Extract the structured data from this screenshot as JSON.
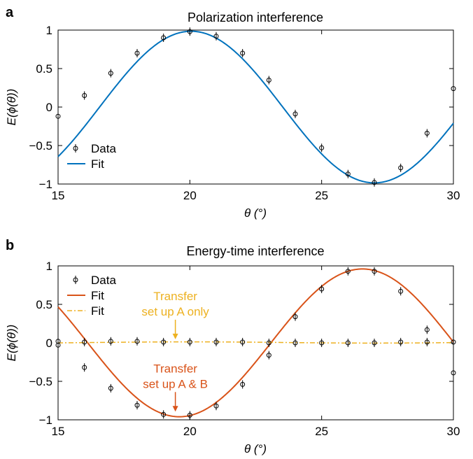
{
  "chart_data": [
    {
      "panel_label": "a",
      "type": "scatter",
      "title": "Polarization interference",
      "xlabel": "θ (°)",
      "ylabel": "E(ϕ(θ))",
      "xlim": [
        15,
        30
      ],
      "ylim": [
        -1,
        1
      ],
      "xticks": [
        15,
        20,
        25,
        30
      ],
      "yticks": [
        -1,
        -0.5,
        0,
        0.5,
        1
      ],
      "xtick_labels": [
        "15",
        "20",
        "25",
        "30"
      ],
      "ytick_labels": [
        "−1",
        "−0.5",
        "0",
        "0.5",
        "1"
      ],
      "legend": {
        "placement": "bottom-left",
        "entries": [
          "Data",
          "Fit"
        ]
      },
      "series": [
        {
          "name": "Data",
          "kind": "markers",
          "color": "#000000",
          "x": [
            15,
            16,
            17,
            18,
            19,
            20,
            21,
            22,
            23,
            24,
            25,
            26,
            27,
            28,
            29,
            30
          ],
          "y": [
            -0.12,
            0.15,
            0.44,
            0.7,
            0.9,
            0.98,
            0.92,
            0.7,
            0.35,
            -0.09,
            -0.53,
            -0.87,
            -0.98,
            -0.79,
            -0.34,
            0.24
          ]
        },
        {
          "name": "Fit",
          "kind": "line",
          "color": "#0072BD",
          "model": {
            "amplitude": 0.985,
            "period": 13.9,
            "peak_x": 20.05,
            "offset": 0.0
          },
          "x_range": [
            15,
            30
          ]
        }
      ],
      "annotations": []
    },
    {
      "panel_label": "b",
      "type": "scatter",
      "title": "Energy-time interference",
      "xlabel": "θ (°)",
      "ylabel": "E(ϕ(θ))",
      "xlim": [
        15,
        30
      ],
      "ylim": [
        -1,
        1
      ],
      "xticks": [
        15,
        20,
        25,
        30
      ],
      "yticks": [
        -1,
        -0.5,
        0,
        0.5,
        1
      ],
      "xtick_labels": [
        "15",
        "20",
        "25",
        "30"
      ],
      "ytick_labels": [
        "−1",
        "−0.5",
        "0",
        "0.5",
        "1"
      ],
      "legend": {
        "placement": "top-left",
        "entries": [
          "Data",
          "Fit",
          "Fit"
        ]
      },
      "series": [
        {
          "name": "Data",
          "kind": "markers",
          "color": "#000000",
          "x": [
            15,
            16,
            17,
            18,
            19,
            20,
            21,
            22,
            23,
            24,
            25,
            26,
            27,
            28,
            29,
            30
          ],
          "y": [
            -0.03,
            -0.32,
            -0.59,
            -0.81,
            -0.93,
            -0.94,
            -0.82,
            -0.54,
            -0.16,
            0.34,
            0.7,
            0.93,
            0.93,
            0.67,
            0.17,
            -0.39
          ]
        },
        {
          "name": "Data",
          "kind": "markers",
          "color": "#000000",
          "x": [
            15,
            16,
            17,
            18,
            19,
            20,
            21,
            22,
            23,
            24,
            25,
            26,
            27,
            28,
            29,
            30
          ],
          "y": [
            0.02,
            0.01,
            0.02,
            0.02,
            0.01,
            0.01,
            0.01,
            0.01,
            0.0,
            0.0,
            0.0,
            0.0,
            0.0,
            0.01,
            0.01,
            0.01
          ]
        },
        {
          "name": "Fit",
          "kind": "line",
          "color": "#D95319",
          "model": {
            "amplitude": 0.96,
            "period": 13.9,
            "peak_x": 26.55,
            "offset": 0.0
          },
          "x_range": [
            15,
            30
          ]
        },
        {
          "name": "Fit",
          "kind": "line",
          "dashed": true,
          "color": "#EDB120",
          "model": {
            "amplitude": 0.008,
            "period": 13.9,
            "peak_x": 20.0,
            "offset": 0.005
          },
          "x_range": [
            15,
            30
          ]
        }
      ],
      "annotations": [
        {
          "lines": [
            "Transfer",
            "set up A only"
          ],
          "color": "#EDB120",
          "arrow_x": 19.45,
          "arrow_y": 0.01
        },
        {
          "lines": [
            "Transfer",
            "set up A & B"
          ],
          "color": "#D95319",
          "arrow_x": 19.45,
          "arrow_y": -0.93
        }
      ]
    }
  ]
}
